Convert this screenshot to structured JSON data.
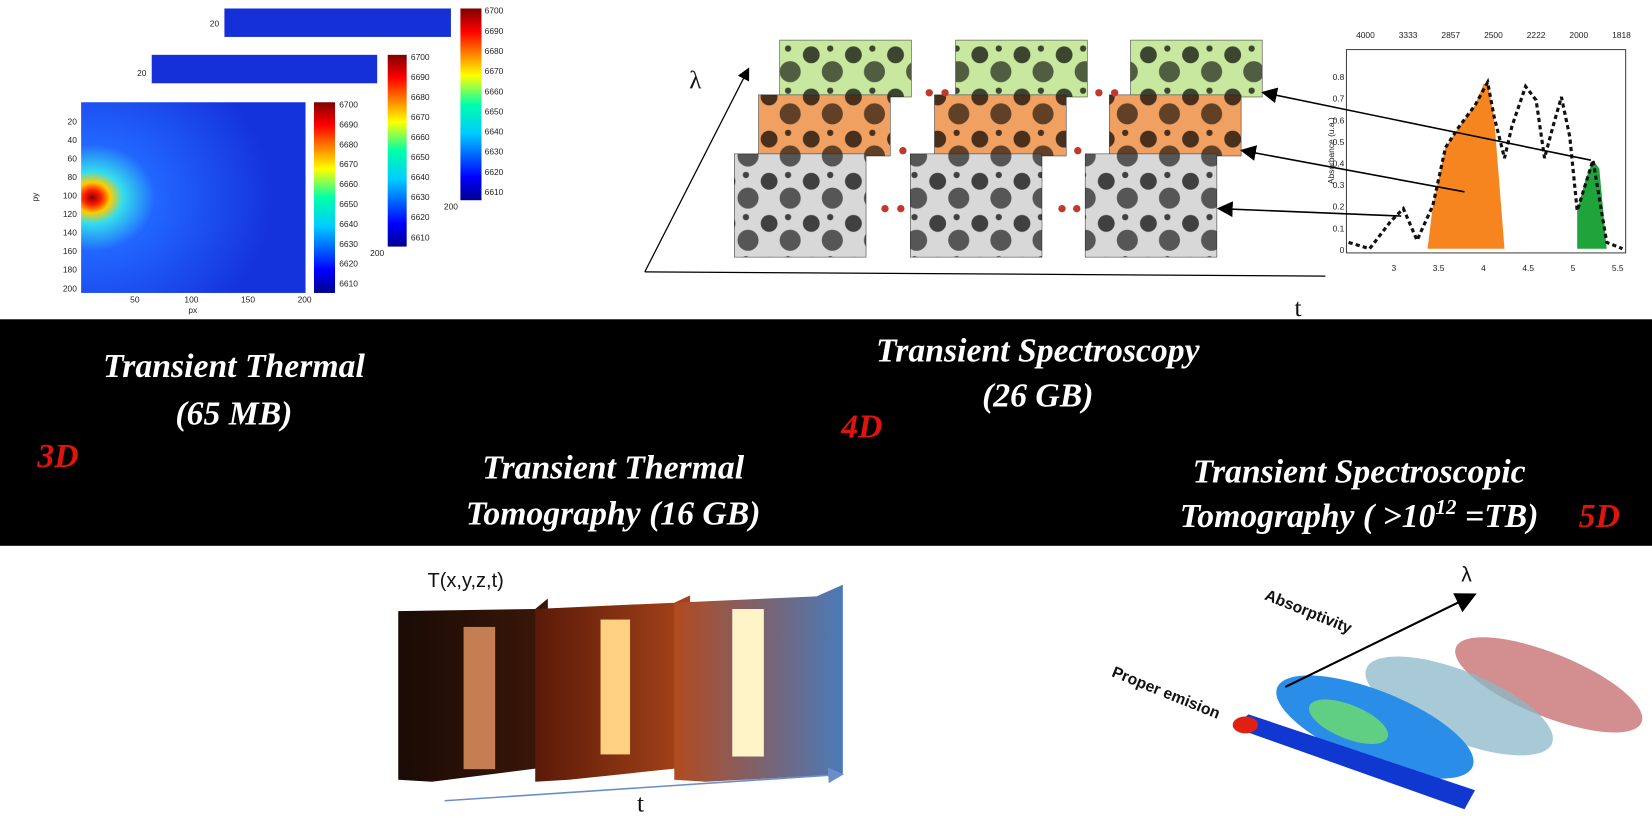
{
  "heatmap": {
    "y_ticks": [
      "20",
      "40",
      "60",
      "80",
      "100",
      "120",
      "140",
      "160",
      "180",
      "200"
    ],
    "x_ticks": [
      "50",
      "100",
      "150",
      "200"
    ],
    "x_label": "px",
    "y_label": "py",
    "colorbar_ticks": [
      "6700",
      "6690",
      "6680",
      "6670",
      "6660",
      "6650",
      "6640",
      "6630",
      "6620",
      "6610"
    ],
    "back_first_tick": "20",
    "back_last_tick": "200"
  },
  "spectroscopy_axes": {
    "lambda": "λ",
    "t": "t"
  },
  "spectrum": {
    "top_ticks": [
      "4000",
      "3333",
      "2857",
      "2500",
      "2222",
      "2000",
      "1818"
    ],
    "left_ticks": [
      "0",
      "0.1",
      "0.2",
      "0.3",
      "0.4",
      "0.5",
      "0.6",
      "0.7",
      "0.8"
    ],
    "bottom_ticks": [
      "3",
      "3.5",
      "4",
      "4.5",
      "5",
      "5.5"
    ],
    "y_label": "Absorbance (u.a.)"
  },
  "band": {
    "thermal_title": "Transient Thermal",
    "thermal_size": "(65 MB)",
    "thermal_dim": "3D",
    "spectroscopy_title": "Transient Spectroscopy",
    "spectroscopy_size": "(26 GB)",
    "spectroscopy_dim": "4D",
    "tomo_title": "Transient Thermal",
    "tomo_size": "Tomography (16 GB)",
    "spectomo_title": "Transient Spectroscopic",
    "spectomo_size_start": "Tomography ( >10",
    "spectomo_exponent": "12",
    "spectomo_size_end": " =TB)",
    "spectomo_dim": "5D"
  },
  "tomography": {
    "function_label": "T(x,y,z,t)",
    "t": "t"
  },
  "spectral_tomography": {
    "lambda": "λ",
    "absorptivity": "Absorptivity",
    "emission": "Proper emision"
  }
}
